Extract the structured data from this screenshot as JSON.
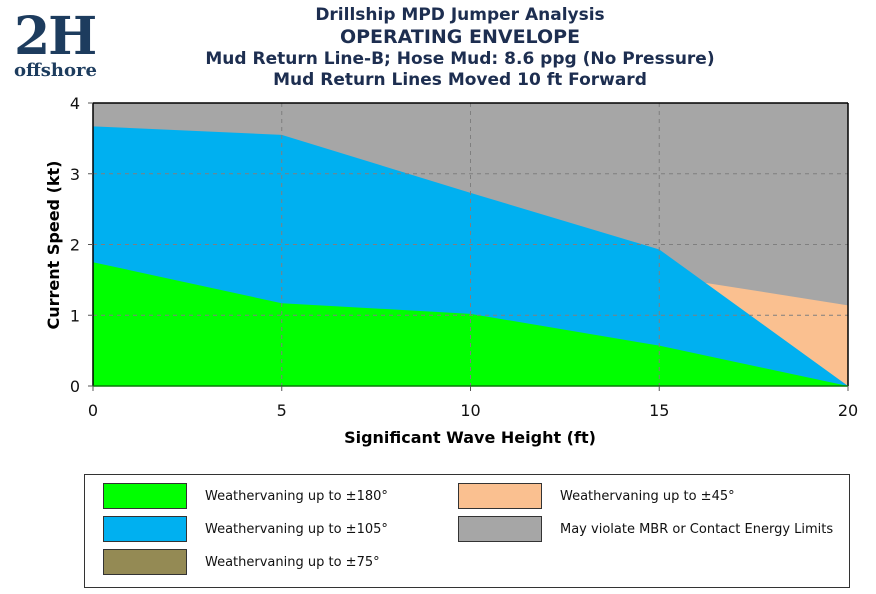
{
  "logo": {
    "main": "2H",
    "sub": "offshore"
  },
  "titles": {
    "line1": "Drillship MPD Jumper Analysis",
    "line2": "OPERATING ENVELOPE",
    "line3": "Mud Return Line-B; Hose Mud: 8.6 ppg (No Pressure)",
    "line4": "Mud Return Lines Moved 10 ft Forward"
  },
  "chart_data": {
    "type": "area",
    "title": "Drillship MPD Jumper Analysis - OPERATING ENVELOPE",
    "xlabel": "Significant Wave Height (ft)",
    "ylabel": "Current Speed (kt)",
    "xlim": [
      0,
      20
    ],
    "ylim": [
      0,
      4
    ],
    "xticks": [
      0,
      5,
      10,
      15,
      20
    ],
    "yticks": [
      0,
      1,
      2,
      3,
      4
    ],
    "grid": true,
    "legend_position": "bottom",
    "series": [
      {
        "name": "May violate MBR or Contact Energy Limits",
        "color": "#a6a6a6",
        "upper": [
          [
            0,
            4
          ],
          [
            20,
            4
          ]
        ],
        "lower": [
          [
            0,
            0
          ],
          [
            20,
            0
          ]
        ]
      },
      {
        "name": "Weathervaning up to ±45°",
        "color": "#fac090",
        "upper": [
          [
            16.2,
            1.46
          ],
          [
            20,
            1.14
          ]
        ],
        "lower": [
          [
            16.2,
            1.46
          ],
          [
            20,
            0
          ]
        ]
      },
      {
        "name": "Weathervaning up to ±105°",
        "color": "#00b0f0",
        "upper": [
          [
            0,
            3.67
          ],
          [
            5,
            3.55
          ],
          [
            10,
            2.73
          ],
          [
            15,
            1.93
          ],
          [
            20,
            0
          ]
        ],
        "lower": [
          [
            0,
            0
          ],
          [
            20,
            0
          ]
        ]
      },
      {
        "name": "Weathervaning up to ±180°",
        "color": "#00ff00",
        "upper": [
          [
            0,
            1.75
          ],
          [
            5,
            1.17
          ],
          [
            10,
            1.02
          ],
          [
            15,
            0.57
          ],
          [
            20,
            0
          ]
        ],
        "lower": [
          [
            0,
            0
          ],
          [
            20,
            0
          ]
        ]
      }
    ],
    "legend": [
      {
        "label": "Weathervaning up to ±180°",
        "color": "#00ff00"
      },
      {
        "label": "Weathervaning up to ±105°",
        "color": "#00b0f0"
      },
      {
        "label": "Weathervaning up to ±75°",
        "color": "#948a54"
      },
      {
        "label": "Weathervaning up to ±45°",
        "color": "#fac090"
      },
      {
        "label": "May violate MBR or Contact Energy Limits",
        "color": "#a6a6a6"
      }
    ]
  }
}
